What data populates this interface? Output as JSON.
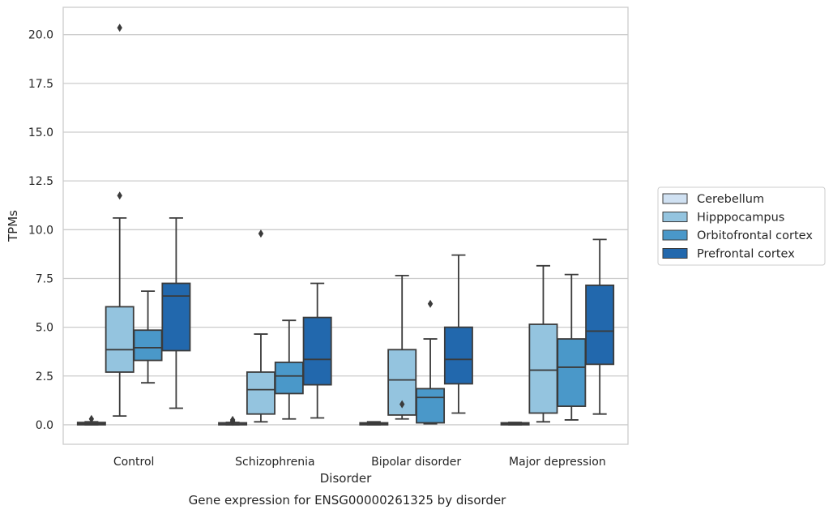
{
  "chart_data": {
    "type": "boxplot",
    "xlabel": "Disorder",
    "ylabel": "TPMs",
    "caption": "Gene expression for ENSG00000261325 by disorder",
    "categories": [
      "Control",
      "Schizophrenia",
      "Bipolar disorder",
      "Major depression"
    ],
    "ylim": [
      -1.0,
      21.4
    ],
    "yticks": [
      0.0,
      2.5,
      5.0,
      7.5,
      10.0,
      12.5,
      15.0,
      17.5,
      20.0
    ],
    "ytick_labels": [
      "0.0",
      "2.5",
      "5.0",
      "7.5",
      "10.0",
      "12.5",
      "15.0",
      "17.5",
      "20.0"
    ],
    "grid": true,
    "legend_position": "right",
    "series": [
      {
        "name": "Cerebellum",
        "color": "#d0e1f2",
        "boxes": [
          {
            "whislo": 0.0,
            "q1": 0.0,
            "med": 0.05,
            "q3": 0.12,
            "whishi": 0.15,
            "fliers": [
              0.3
            ]
          },
          {
            "whislo": 0.0,
            "q1": 0.0,
            "med": 0.03,
            "q3": 0.1,
            "whishi": 0.12,
            "fliers": [
              0.25,
              0.2,
              0.15
            ]
          },
          {
            "whislo": 0.0,
            "q1": 0.0,
            "med": 0.05,
            "q3": 0.1,
            "whishi": 0.15,
            "fliers": []
          },
          {
            "whislo": 0.0,
            "q1": 0.0,
            "med": 0.05,
            "q3": 0.1,
            "whishi": 0.12,
            "fliers": []
          }
        ]
      },
      {
        "name": "Hipppocampus",
        "color": "#94c4df",
        "boxes": [
          {
            "whislo": 0.45,
            "q1": 2.7,
            "med": 3.85,
            "q3": 6.05,
            "whishi": 10.6,
            "fliers": [
              11.75,
              20.35
            ]
          },
          {
            "whislo": 0.15,
            "q1": 0.55,
            "med": 1.8,
            "q3": 2.7,
            "whishi": 4.65,
            "fliers": [
              9.8
            ]
          },
          {
            "whislo": 0.3,
            "q1": 0.5,
            "med": 2.3,
            "q3": 3.85,
            "whishi": 7.65,
            "fliers": [
              1.05
            ]
          },
          {
            "whislo": 0.15,
            "q1": 0.6,
            "med": 2.8,
            "q3": 5.15,
            "whishi": 8.15,
            "fliers": []
          }
        ]
      },
      {
        "name": "Orbitofrontal cortex",
        "color": "#4a98c9",
        "boxes": [
          {
            "whislo": 2.15,
            "q1": 3.3,
            "med": 3.95,
            "q3": 4.85,
            "whishi": 6.85,
            "fliers": []
          },
          {
            "whislo": 0.3,
            "q1": 1.6,
            "med": 2.5,
            "q3": 3.2,
            "whishi": 5.35,
            "fliers": []
          },
          {
            "whislo": 0.05,
            "q1": 0.1,
            "med": 1.4,
            "q3": 1.85,
            "whishi": 4.4,
            "fliers": [
              6.2
            ]
          },
          {
            "whislo": 0.25,
            "q1": 0.95,
            "med": 2.95,
            "q3": 4.4,
            "whishi": 7.7,
            "fliers": []
          }
        ]
      },
      {
        "name": "Prefrontal cortex",
        "color": "#2268ad",
        "boxes": [
          {
            "whislo": 0.85,
            "q1": 3.8,
            "med": 6.6,
            "q3": 7.25,
            "whishi": 10.6,
            "fliers": []
          },
          {
            "whislo": 0.35,
            "q1": 2.05,
            "med": 3.35,
            "q3": 5.5,
            "whishi": 7.25,
            "fliers": []
          },
          {
            "whislo": 0.6,
            "q1": 2.1,
            "med": 3.35,
            "q3": 5.0,
            "whishi": 8.7,
            "fliers": []
          },
          {
            "whislo": 0.55,
            "q1": 3.1,
            "med": 4.8,
            "q3": 7.15,
            "whishi": 9.5,
            "fliers": []
          }
        ]
      }
    ]
  }
}
